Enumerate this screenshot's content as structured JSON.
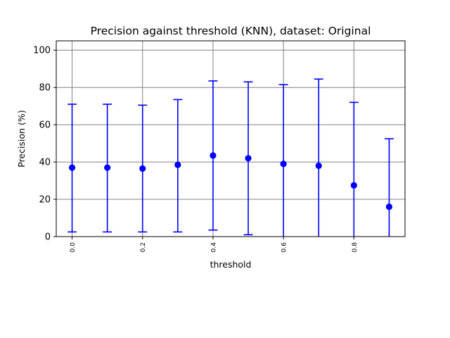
{
  "chart_data": {
    "type": "scatter",
    "title": "Precision against threshold (KNN), dataset: Original",
    "xlabel": "threshold",
    "ylabel": "Precision (%)",
    "xlim": [
      -0.045,
      0.945
    ],
    "ylim": [
      0,
      105
    ],
    "yticks": [
      0,
      20,
      40,
      60,
      80,
      100
    ],
    "xticks": [
      0.0,
      0.2,
      0.4,
      0.6,
      0.8
    ],
    "xtick_labels": [
      "0.0",
      "0.2",
      "0.4",
      "0.6",
      "0.8"
    ],
    "ytick_labels": [
      "0",
      "20",
      "40",
      "60",
      "80",
      "100"
    ],
    "grid": true,
    "color": "#0000ff",
    "series": [
      {
        "points": [
          {
            "x": 0.0,
            "y": 37.0,
            "err_low": 2.5,
            "err_high": 71.0
          },
          {
            "x": 0.1,
            "y": 37.0,
            "err_low": 2.5,
            "err_high": 71.0
          },
          {
            "x": 0.2,
            "y": 36.5,
            "err_low": 2.5,
            "err_high": 70.5
          },
          {
            "x": 0.3,
            "y": 38.5,
            "err_low": 2.5,
            "err_high": 73.5
          },
          {
            "x": 0.4,
            "y": 43.5,
            "err_low": 3.5,
            "err_high": 83.5
          },
          {
            "x": 0.5,
            "y": 42.0,
            "err_low": 1.0,
            "err_high": 83.0
          },
          {
            "x": 0.6,
            "y": 39.0,
            "err_low": -3.5,
            "err_high": 81.5
          },
          {
            "x": 0.7,
            "y": 38.0,
            "err_low": -8.5,
            "err_high": 84.5
          },
          {
            "x": 0.8,
            "y": 27.5,
            "err_low": -17.0,
            "err_high": 72.0
          },
          {
            "x": 0.9,
            "y": 16.0,
            "err_low": -20.5,
            "err_high": 52.5
          }
        ]
      }
    ]
  }
}
